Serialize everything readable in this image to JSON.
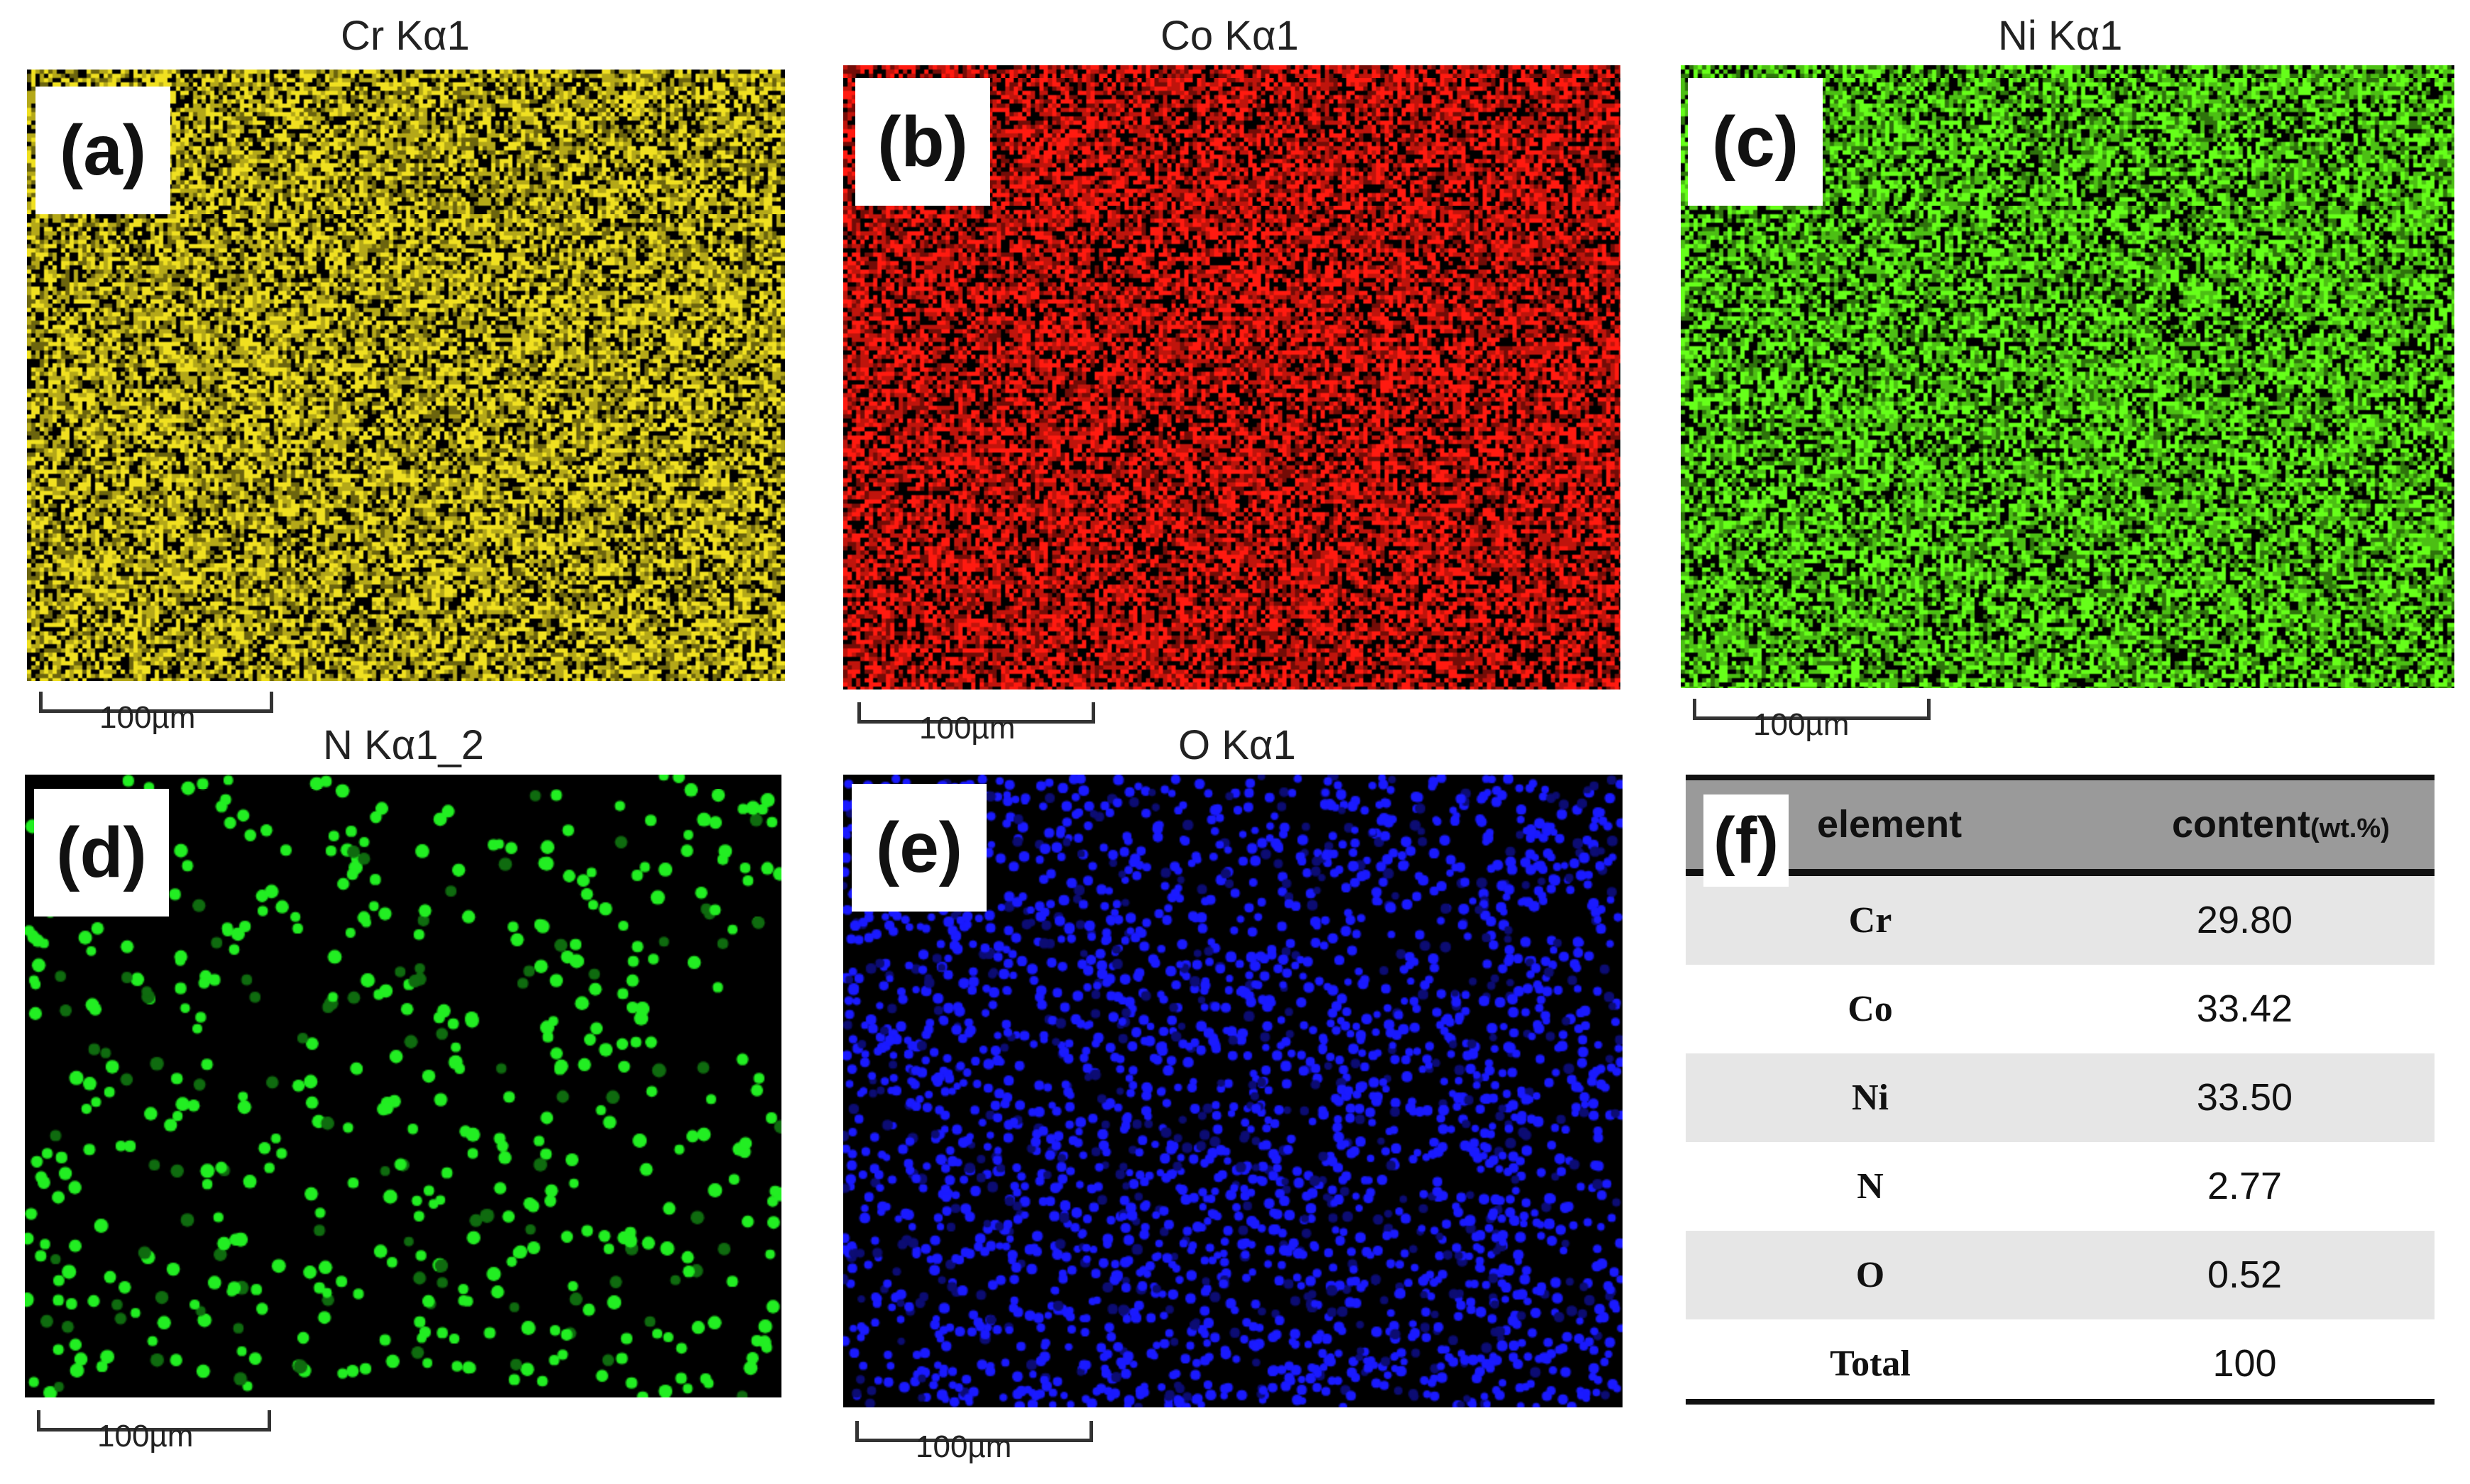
{
  "panels": [
    {
      "id": "a",
      "label": "(a)",
      "title": "Cr Kα1",
      "scale": "100µm",
      "color": "#f0e020",
      "style": "dense"
    },
    {
      "id": "b",
      "label": "(b)",
      "title": "Co Kα1",
      "scale": "100µm",
      "color": "#ff1a10",
      "style": "dense"
    },
    {
      "id": "c",
      "label": "(c)",
      "title": "Ni Kα1",
      "scale": "100µm",
      "color": "#66ff1a",
      "style": "dense"
    },
    {
      "id": "d",
      "label": "(d)",
      "title": "N Kα1_2",
      "scale": "100µm",
      "color": "#22ee22",
      "style": "sparse"
    },
    {
      "id": "e",
      "label": "(e)",
      "title": "O Kα1",
      "scale": "100µm",
      "color": "#1a1aff",
      "style": "medium"
    }
  ],
  "table": {
    "label": "(f)",
    "headers": {
      "element": "element",
      "content": "content",
      "unit": "(wt.%)"
    },
    "rows": [
      {
        "element": "Cr",
        "value": "29.80"
      },
      {
        "element": "Co",
        "value": "33.42"
      },
      {
        "element": "Ni",
        "value": "33.50"
      },
      {
        "element": "N",
        "value": "2.77"
      },
      {
        "element": "O",
        "value": "0.52"
      },
      {
        "element": "Total",
        "value": "100"
      }
    ]
  }
}
